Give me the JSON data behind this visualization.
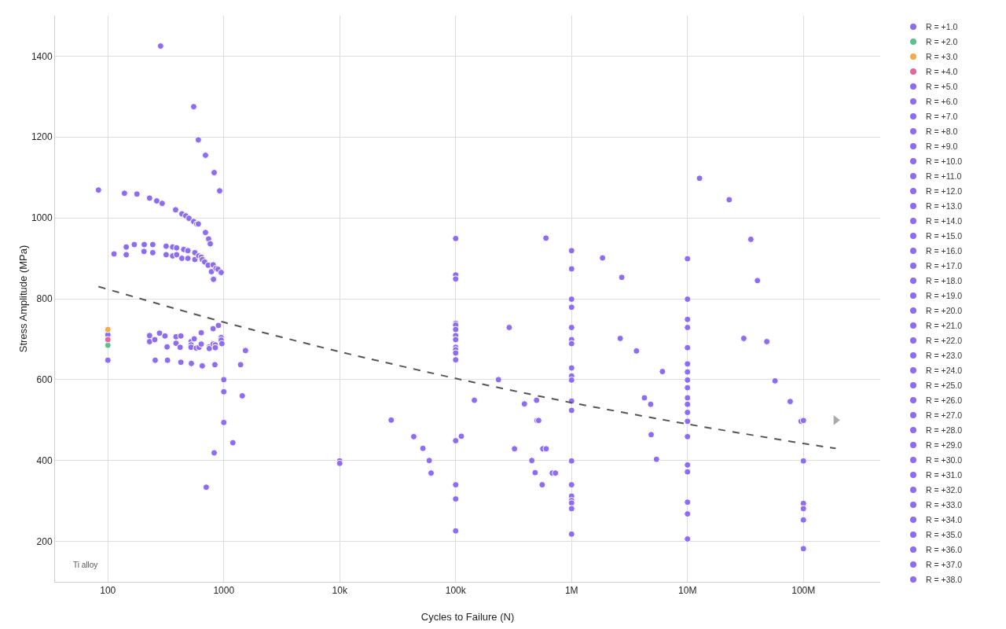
{
  "chart_data": {
    "type": "scatter",
    "xlabel": "Cycles to Failure (N)",
    "ylabel": "Stress Amplitude (MPa)",
    "log": "x",
    "grid": true,
    "legend": "right",
    "marker": "circle",
    "xlim": [
      35,
      460000000
    ],
    "xticks": [
      100,
      1000,
      {
        "value": 10000,
        "label": "10k"
      },
      {
        "value": 100000,
        "label": "100k"
      },
      {
        "value": 1000000,
        "label": "1M"
      },
      {
        "value": 10000000,
        "label": "10M"
      },
      {
        "value": 100000000,
        "label": "100M"
      }
    ],
    "ylim": [
      100,
      1500
    ],
    "yticks": [
      200,
      400,
      600,
      800,
      1000,
      1200,
      1400
    ],
    "annotations": [
      "Ti alloy"
    ],
    "series": [
      {
        "name": "R = +1.0",
        "color": "#8d6cef",
        "x": [
          83,
          285,
          550,
          603,
          695,
          826,
          921,
          139,
          178,
          229,
          264,
          294,
          384,
          435,
          470,
          501,
          550,
          585,
          603,
          695,
          740,
          764,
          813,
          113,
          144,
          144,
          169,
          206,
          205,
          244,
          244,
          318,
          318,
          362,
          362,
          392,
          392,
          451,
          435,
          490,
          490,
          563,
          563,
          608,
          639,
          653,
          684,
          734,
          809,
          782,
          857,
          891,
          950,
          815,
          100,
          100,
          229,
          229,
          254,
          279,
          311,
          324,
          387,
          387,
          426,
          420,
          522,
          522,
          522,
          556,
          580,
          612,
          639,
          639,
          750,
          750,
          809,
          845,
          845,
          809,
          899,
          950,
          950,
          963,
          1539,
          256,
          327,
          426,
          525,
          652,
          838,
          1396,
          1000,
          1000,
          1444,
          1000,
          1197,
          826,
          705,
          10000,
          10000,
          100000,
          100000,
          100000,
          100000,
          100000,
          100000,
          100000,
          100000,
          100000,
          100000,
          100000,
          100000,
          100000,
          100000,
          100000,
          100000,
          27800,
          43500,
          52200,
          59200,
          61400,
          112000,
          145000,
          234000,
          290000,
          322000,
          392000,
          454000,
          485000,
          499000,
          504000,
          520000,
          558000,
          565000,
          604000,
          682000,
          726000,
          601000,
          1000000,
          1000000,
          1000000,
          1000000,
          1000000,
          1000000,
          1000000,
          1000000,
          1000000,
          1000000,
          1000000,
          1000000,
          1000000,
          1000000,
          1000000,
          1000000,
          1000000,
          1000000,
          1000000,
          1850000,
          2710000,
          2630000,
          3630000,
          6080000,
          4250000,
          4810000,
          4860000,
          5400000,
          10000000,
          10000000,
          10000000,
          10000000,
          10000000,
          10000000,
          10000000,
          10000000,
          10000000,
          10000000,
          10000000,
          10000000,
          10000000,
          10000000,
          10000000,
          10000000,
          10000000,
          10000000,
          10000000,
          10000000,
          10000000,
          10000000,
          10000000,
          12700000,
          22900000,
          35200000,
          40100000,
          30600000,
          48300000,
          56900000,
          76900000,
          95500000,
          100000000,
          100000000,
          100000000,
          100000000,
          100000000,
          100000000
        ],
        "values": [
          1069,
          1425,
          1275,
          1193,
          1155,
          1112,
          1067,
          1061,
          1059,
          1049,
          1042,
          1036,
          1020,
          1010,
          1005,
          999,
          991,
          985,
          985,
          964,
          948,
          936,
          849,
          911,
          928,
          909,
          934,
          934,
          917,
          934,
          914,
          930,
          909,
          928,
          906,
          926,
          909,
          922,
          900,
          919,
          900,
          914,
          897,
          906,
          903,
          897,
          891,
          883,
          884,
          867,
          875,
          873,
          865,
          848,
          711,
          648,
          709,
          694,
          699,
          715,
          708,
          681,
          706,
          690,
          708,
          680,
          694,
          686,
          680,
          701,
          678,
          680,
          716,
          688,
          681,
          677,
          688,
          686,
          679,
          726,
          734,
          704,
          698,
          689,
          672,
          648,
          648,
          643,
          640,
          634,
          637,
          637,
          600,
          570,
          560,
          494,
          444,
          419,
          334,
          399,
          393,
          949,
          859,
          849,
          739,
          735,
          724,
          709,
          699,
          680,
          674,
          666,
          649,
          449,
          340,
          305,
          226,
          500,
          459,
          430,
          400,
          369,
          460,
          549,
          600,
          729,
          429,
          540,
          400,
          370,
          549,
          499,
          499,
          340,
          429,
          429,
          369,
          369,
          950,
          919,
          874,
          799,
          779,
          729,
          699,
          689,
          629,
          609,
          599,
          547,
          524,
          399,
          340,
          312,
          301,
          295,
          281,
          218,
          901,
          853,
          702,
          671,
          620,
          555,
          539,
          464,
          403,
          899,
          799,
          749,
          729,
          679,
          679,
          639,
          639,
          619,
          599,
          580,
          555,
          539,
          539,
          519,
          497,
          497,
          459,
          389,
          372,
          297,
          268,
          206,
          1098,
          1045,
          947,
          845,
          702,
          694,
          597,
          546,
          497,
          499,
          399,
          294,
          281,
          253,
          182
        ]
      },
      {
        "name": "R = +2.0",
        "color": "#5fc08f",
        "x": [
          100
        ],
        "values": [
          685
        ]
      },
      {
        "name": "R = +3.0",
        "color": "#f2ac4b",
        "x": [
          100
        ],
        "values": [
          724
        ]
      },
      {
        "name": "R = +4.0",
        "color": "#e2689f",
        "x": [
          100
        ],
        "values": [
          699
        ]
      },
      {
        "name": "R = +5.0",
        "color": "#8d6cef"
      },
      {
        "name": "R = +6.0",
        "color": "#8d6cef"
      },
      {
        "name": "R = +7.0",
        "color": "#8d6cef"
      },
      {
        "name": "R = +8.0",
        "color": "#8d6cef"
      },
      {
        "name": "R = +9.0",
        "color": "#8d6cef"
      },
      {
        "name": "R = +10.0",
        "color": "#8d6cef"
      },
      {
        "name": "R = +11.0",
        "color": "#8d6cef"
      },
      {
        "name": "R = +12.0",
        "color": "#8d6cef"
      },
      {
        "name": "R = +13.0",
        "color": "#8d6cef"
      },
      {
        "name": "R = +14.0",
        "color": "#8d6cef"
      },
      {
        "name": "R = +15.0",
        "color": "#8d6cef"
      },
      {
        "name": "R = +16.0",
        "color": "#8d6cef"
      },
      {
        "name": "R = +17.0",
        "color": "#8d6cef"
      },
      {
        "name": "R = +18.0",
        "color": "#8d6cef"
      },
      {
        "name": "R = +19.0",
        "color": "#8d6cef"
      },
      {
        "name": "R = +20.0",
        "color": "#8d6cef"
      },
      {
        "name": "R = +21.0",
        "color": "#8d6cef"
      },
      {
        "name": "R = +22.0",
        "color": "#8d6cef"
      },
      {
        "name": "R = +23.0",
        "color": "#8d6cef"
      },
      {
        "name": "R = +24.0",
        "color": "#8d6cef"
      },
      {
        "name": "R = +25.0",
        "color": "#8d6cef"
      },
      {
        "name": "R = +26.0",
        "color": "#8d6cef"
      },
      {
        "name": "R = +27.0",
        "color": "#8d6cef"
      },
      {
        "name": "R = +28.0",
        "color": "#8d6cef"
      },
      {
        "name": "R = +29.0",
        "color": "#8d6cef"
      },
      {
        "name": "R = +30.0",
        "color": "#8d6cef"
      },
      {
        "name": "R = +31.0",
        "color": "#8d6cef"
      },
      {
        "name": "R = +32.0",
        "color": "#8d6cef"
      },
      {
        "name": "R = +33.0",
        "color": "#8d6cef"
      },
      {
        "name": "R = +34.0",
        "color": "#8d6cef"
      },
      {
        "name": "R = +35.0",
        "color": "#8d6cef"
      },
      {
        "name": "R = +36.0",
        "color": "#8d6cef"
      },
      {
        "name": "R = +37.0",
        "color": "#8d6cef"
      },
      {
        "name": "R = +38.0",
        "color": "#8d6cef"
      },
      {
        "type": "line",
        "color": "#555555",
        "line_style": "dashed",
        "marker": "none",
        "x": [
          83,
          1000,
          10000,
          100000,
          1000000,
          10000000,
          100000000,
          190000000
        ],
        "values": [
          830,
          742,
          669,
          603,
          543,
          490,
          442,
          430
        ]
      },
      {
        "type": "scatter",
        "color": "#aaaaaa",
        "marker": "triangle",
        "x": [
          190000000
        ],
        "values": [
          500
        ]
      }
    ]
  }
}
